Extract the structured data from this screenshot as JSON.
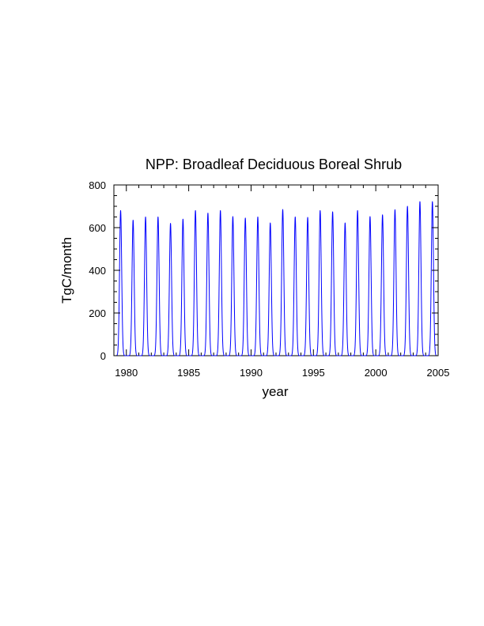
{
  "chart_data": {
    "type": "line",
    "title": "NPP: Broadleaf Deciduous Boreal Shrub",
    "xlabel": "year",
    "ylabel": "TgC/month",
    "xlim": [
      1979,
      2005
    ],
    "ylim": [
      0,
      800
    ],
    "x_ticks": [
      1980,
      1985,
      1990,
      1995,
      2000,
      2005
    ],
    "y_ticks": [
      0,
      200,
      400,
      600,
      800
    ],
    "grid": false,
    "legend": "none",
    "series": [
      {
        "color": "#0000ff",
        "x": [
          1979.54,
          1980.54,
          1981.54,
          1982.54,
          1983.54,
          1984.54,
          1985.54,
          1986.54,
          1987.54,
          1988.54,
          1989.54,
          1990.54,
          1991.54,
          1992.54,
          1993.54,
          1994.54,
          1995.54,
          1996.54,
          1997.54,
          1998.54,
          1999.54,
          2000.54,
          2001.54,
          2002.54,
          2003.54,
          2004.54
        ],
        "y": [
          680,
          635,
          650,
          650,
          620,
          640,
          680,
          668,
          680,
          652,
          645,
          650,
          622,
          685,
          650,
          648,
          680,
          674,
          622,
          680,
          652,
          660,
          684,
          700,
          722,
          722
        ]
      }
    ]
  }
}
